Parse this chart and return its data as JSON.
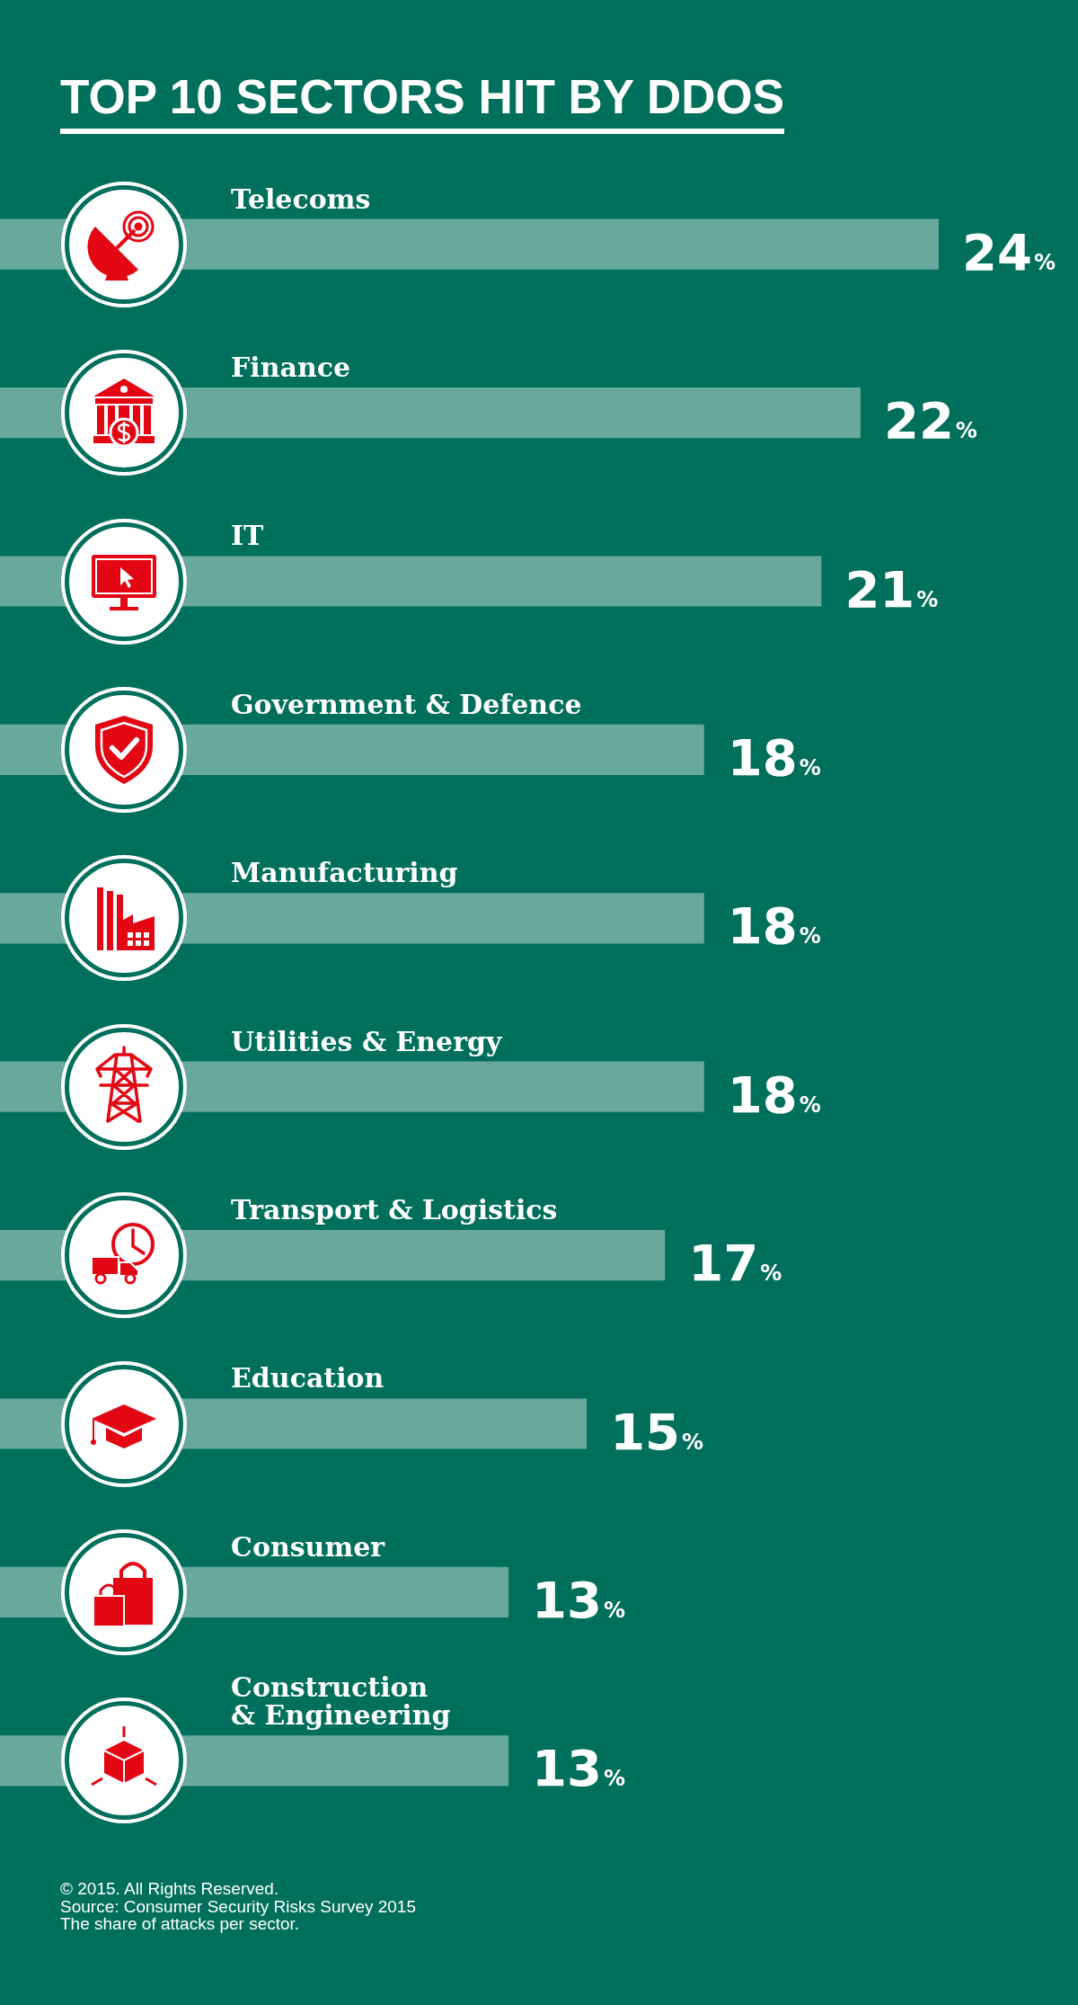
{
  "chart_data": {
    "type": "bar",
    "orientation": "horizontal",
    "title": "TOP 10 SECTORS HIT BY DDOS",
    "categories": [
      "Telecoms",
      "Finance",
      "IT",
      "Government & Defence",
      "Manufacturing",
      "Utilities & Energy",
      "Transport & Logistics",
      "Education",
      "Consumer",
      "Construction & Engineering"
    ],
    "values": [
      24,
      22,
      21,
      18,
      18,
      18,
      17,
      15,
      13,
      13
    ],
    "color": "#68a99c",
    "value_labels": [
      "24%",
      "22%",
      "21%",
      "18%",
      "18%",
      "18%",
      "17%",
      "15%",
      "13%",
      "13%"
    ],
    "annotations": [
      "© 2015. All Rights Reserved.",
      "Source: Consumer Security Risks Survey 2015",
      "The share of attacks per sector."
    ]
  }
}
